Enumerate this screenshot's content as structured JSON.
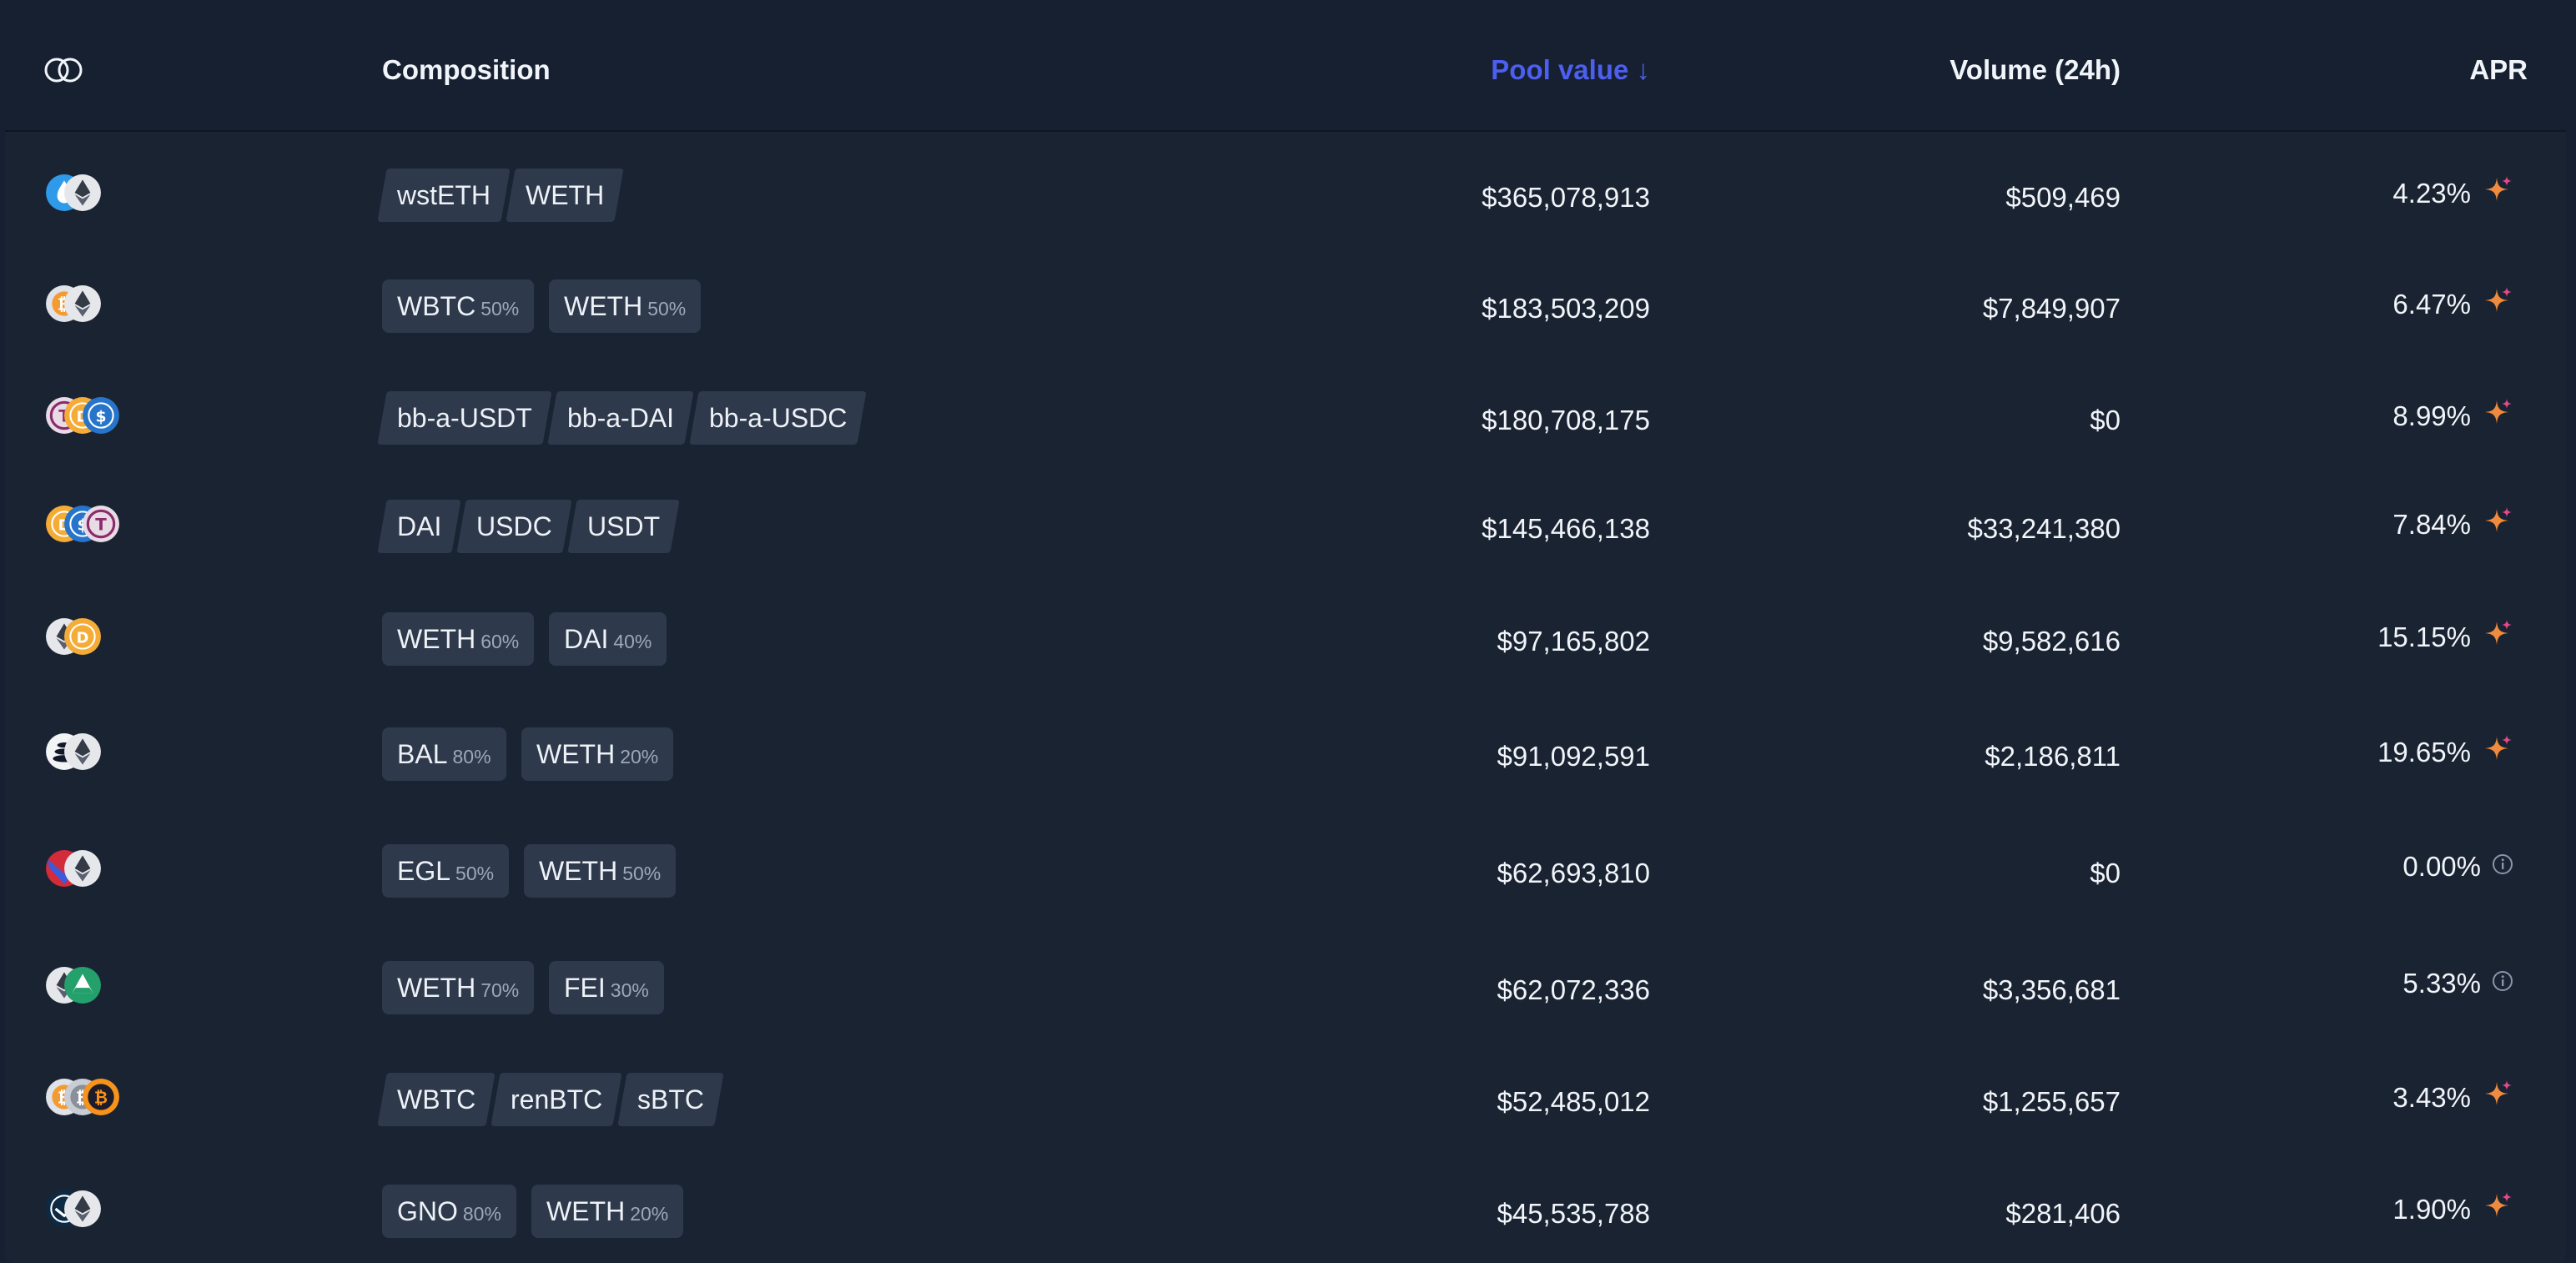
{
  "header": {
    "composition": "Composition",
    "pool_value": "Pool value ↓",
    "volume": "Volume (24h)",
    "apr": "APR"
  },
  "colors": {
    "accent": "#4c5ff0",
    "background": "#1a2332",
    "chip": "#2e394c",
    "apr_star": "#f0883e"
  },
  "pools": [
    {
      "icons": [
        "wsteth-icon",
        "eth-icon"
      ],
      "chips": [
        {
          "symbol": "wstETH"
        },
        {
          "symbol": "WETH"
        }
      ],
      "weighted": false,
      "pool_value": "$365,078,913",
      "volume": "$509,469",
      "apr": "4.23%",
      "apr_icon": "sparkle-icon"
    },
    {
      "icons": [
        "btc-icon",
        "eth-icon"
      ],
      "chips": [
        {
          "symbol": "WBTC",
          "pct": "50%"
        },
        {
          "symbol": "WETH",
          "pct": "50%"
        }
      ],
      "weighted": true,
      "pool_value": "$183,503,209",
      "volume": "$7,849,907",
      "apr": "6.47%",
      "apr_icon": "sparkle-icon"
    },
    {
      "icons": [
        "usdt-icon",
        "dai-icon",
        "usdc-icon"
      ],
      "chips": [
        {
          "symbol": "bb-a-USDT"
        },
        {
          "symbol": "bb-a-DAI"
        },
        {
          "symbol": "bb-a-USDC"
        }
      ],
      "weighted": false,
      "pool_value": "$180,708,175",
      "volume": "$0",
      "apr": "8.99%",
      "apr_icon": "sparkle-icon"
    },
    {
      "icons": [
        "dai-icon",
        "usdc-icon",
        "usdt-icon"
      ],
      "chips": [
        {
          "symbol": "DAI"
        },
        {
          "symbol": "USDC"
        },
        {
          "symbol": "USDT"
        }
      ],
      "weighted": false,
      "pool_value": "$145,466,138",
      "volume": "$33,241,380",
      "apr": "7.84%",
      "apr_icon": "sparkle-icon"
    },
    {
      "icons": [
        "eth-icon",
        "dai-icon"
      ],
      "chips": [
        {
          "symbol": "WETH",
          "pct": "60%"
        },
        {
          "symbol": "DAI",
          "pct": "40%"
        }
      ],
      "weighted": true,
      "pool_value": "$97,165,802",
      "volume": "$9,582,616",
      "apr": "15.15%",
      "apr_icon": "sparkle-icon"
    },
    {
      "icons": [
        "bal-icon",
        "eth-icon"
      ],
      "chips": [
        {
          "symbol": "BAL",
          "pct": "80%"
        },
        {
          "symbol": "WETH",
          "pct": "20%"
        }
      ],
      "weighted": true,
      "pool_value": "$91,092,591",
      "volume": "$2,186,811",
      "apr": "19.65%",
      "apr_icon": "sparkle-icon"
    },
    {
      "icons": [
        "egl-icon",
        "eth-icon"
      ],
      "chips": [
        {
          "symbol": "EGL",
          "pct": "50%"
        },
        {
          "symbol": "WETH",
          "pct": "50%"
        }
      ],
      "weighted": true,
      "pool_value": "$62,693,810",
      "volume": "$0",
      "apr": "0.00%",
      "apr_icon": "info-icon"
    },
    {
      "icons": [
        "eth-icon",
        "fei-icon"
      ],
      "chips": [
        {
          "symbol": "WETH",
          "pct": "70%"
        },
        {
          "symbol": "FEI",
          "pct": "30%"
        }
      ],
      "weighted": true,
      "pool_value": "$62,072,336",
      "volume": "$3,356,681",
      "apr": "5.33%",
      "apr_icon": "info-icon"
    },
    {
      "icons": [
        "btc-icon",
        "renbtc-icon",
        "sbtc-icon"
      ],
      "chips": [
        {
          "symbol": "WBTC"
        },
        {
          "symbol": "renBTC"
        },
        {
          "symbol": "sBTC"
        }
      ],
      "weighted": false,
      "pool_value": "$52,485,012",
      "volume": "$1,255,657",
      "apr": "3.43%",
      "apr_icon": "sparkle-icon"
    },
    {
      "icons": [
        "gno-icon",
        "eth-icon"
      ],
      "chips": [
        {
          "symbol": "GNO",
          "pct": "80%"
        },
        {
          "symbol": "WETH",
          "pct": "20%"
        }
      ],
      "weighted": true,
      "pool_value": "$45,535,788",
      "volume": "$281,406",
      "apr": "1.90%",
      "apr_icon": "sparkle-icon"
    }
  ]
}
